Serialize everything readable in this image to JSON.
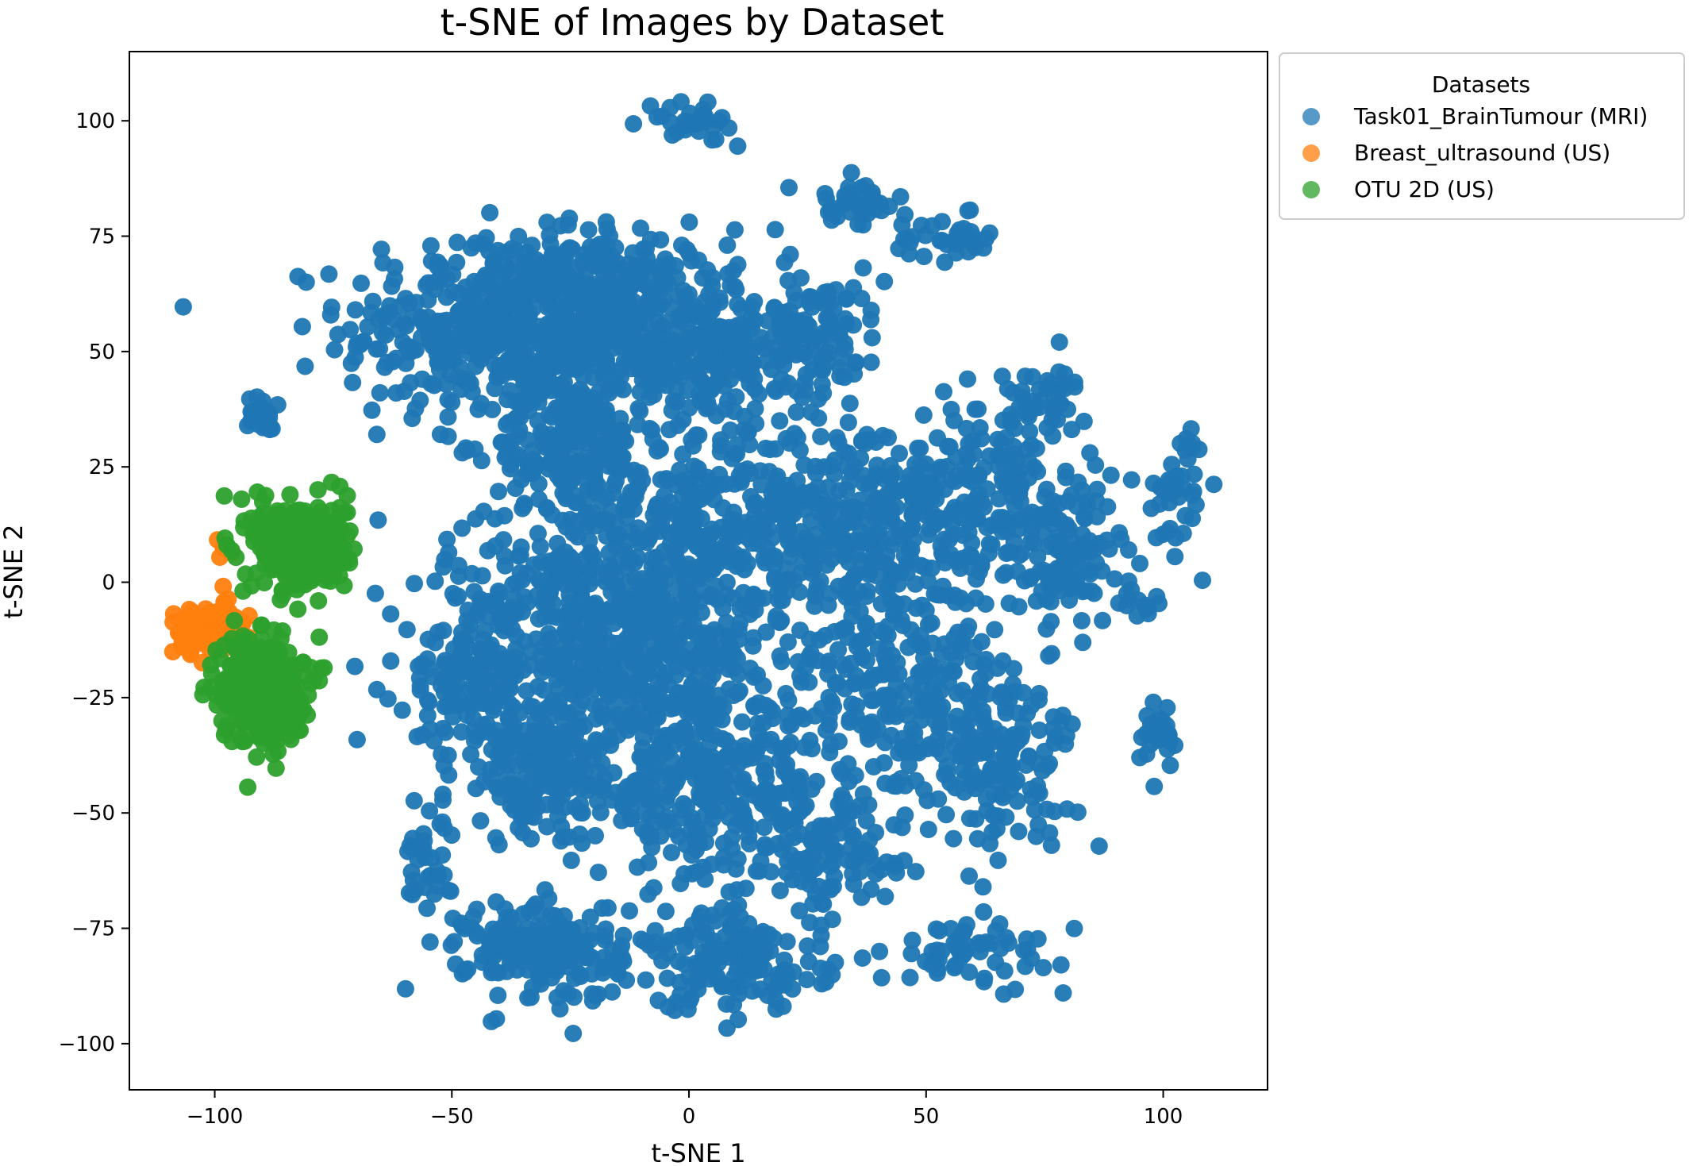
{
  "chart_data": {
    "type": "scatter",
    "title": "t-SNE of Images by Dataset",
    "xlabel": "t-SNE 1",
    "ylabel": "t-SNE 2",
    "xlim": [
      -118,
      122
    ],
    "ylim": [
      -110,
      115
    ],
    "xticks": [
      -100,
      -50,
      0,
      50,
      100
    ],
    "xtick_labels": [
      "−100",
      "−50",
      "0",
      "50",
      "100"
    ],
    "yticks": [
      -100,
      -75,
      -50,
      -25,
      0,
      25,
      50,
      75,
      100
    ],
    "ytick_labels": [
      "−100",
      "−75",
      "−50",
      "−25",
      "0",
      "25",
      "50",
      "75",
      "100"
    ],
    "grid": false,
    "legend": {
      "title": "Datasets",
      "placement": "outside-top-right"
    },
    "series": [
      {
        "name": "Task01_BrainTumour (MRI)",
        "color": "#1f77b4",
        "clusters": [
          {
            "cx": -40,
            "cy": 55,
            "rx": 30,
            "ry": 18,
            "n": 420
          },
          {
            "cx": -20,
            "cy": 60,
            "rx": 25,
            "ry": 15,
            "n": 300
          },
          {
            "cx": 0,
            "cy": 50,
            "rx": 20,
            "ry": 14,
            "n": 200
          },
          {
            "cx": -25,
            "cy": 30,
            "rx": 15,
            "ry": 12,
            "n": 200
          },
          {
            "cx": 25,
            "cy": 55,
            "rx": 15,
            "ry": 12,
            "n": 120
          },
          {
            "cx": 10,
            "cy": 15,
            "rx": 30,
            "ry": 22,
            "n": 350
          },
          {
            "cx": -20,
            "cy": 0,
            "rx": 28,
            "ry": 18,
            "n": 300
          },
          {
            "cx": 40,
            "cy": 10,
            "rx": 25,
            "ry": 22,
            "n": 260
          },
          {
            "cx": 65,
            "cy": 20,
            "rx": 18,
            "ry": 20,
            "n": 160
          },
          {
            "cx": 80,
            "cy": 5,
            "rx": 12,
            "ry": 15,
            "n": 90
          },
          {
            "cx": -45,
            "cy": -20,
            "rx": 15,
            "ry": 15,
            "n": 160
          },
          {
            "cx": -30,
            "cy": -40,
            "rx": 18,
            "ry": 15,
            "n": 200
          },
          {
            "cx": 5,
            "cy": -45,
            "rx": 22,
            "ry": 18,
            "n": 320
          },
          {
            "cx": 45,
            "cy": -25,
            "rx": 25,
            "ry": 20,
            "n": 260
          },
          {
            "cx": 65,
            "cy": -40,
            "rx": 15,
            "ry": 15,
            "n": 120
          },
          {
            "cx": -30,
            "cy": -80,
            "rx": 15,
            "ry": 10,
            "n": 200
          },
          {
            "cx": 10,
            "cy": -82,
            "rx": 18,
            "ry": 10,
            "n": 160
          },
          {
            "cx": 30,
            "cy": -60,
            "rx": 12,
            "ry": 10,
            "n": 90
          },
          {
            "cx": -10,
            "cy": -20,
            "rx": 22,
            "ry": 15,
            "n": 260
          },
          {
            "cx": 75,
            "cy": 40,
            "rx": 8,
            "ry": 6,
            "n": 40
          },
          {
            "cx": 0,
            "cy": 100,
            "rx": 8,
            "ry": 4,
            "n": 30
          },
          {
            "cx": 35,
            "cy": 82,
            "rx": 10,
            "ry": 4,
            "n": 40
          },
          {
            "cx": 55,
            "cy": 75,
            "rx": 10,
            "ry": 4,
            "n": 35
          },
          {
            "cx": 103,
            "cy": 20,
            "rx": 6,
            "ry": 12,
            "n": 40
          },
          {
            "cx": 100,
            "cy": -32,
            "rx": 4,
            "ry": 8,
            "n": 25
          },
          {
            "cx": 60,
            "cy": -80,
            "rx": 18,
            "ry": 6,
            "n": 60
          },
          {
            "cx": -55,
            "cy": -60,
            "rx": 5,
            "ry": 12,
            "n": 40
          },
          {
            "cx": -90,
            "cy": 36,
            "rx": 5,
            "ry": 4,
            "n": 20
          },
          {
            "cx": 95,
            "cy": -5,
            "rx": 3,
            "ry": 3,
            "n": 12
          }
        ]
      },
      {
        "name": "Breast_ultrasound (US)",
        "color": "#ff7f0e",
        "clusters": [
          {
            "cx": -101,
            "cy": -10,
            "rx": 7,
            "ry": 5,
            "n": 120
          },
          {
            "cx": -97,
            "cy": 8,
            "rx": 2,
            "ry": 2,
            "n": 8
          }
        ]
      },
      {
        "name": "OTU 2D (US)",
        "color": "#2ca02c",
        "clusters": [
          {
            "cx": -82,
            "cy": 8,
            "rx": 9,
            "ry": 9,
            "n": 320
          },
          {
            "cx": -90,
            "cy": -23,
            "rx": 8,
            "ry": 11,
            "n": 300
          }
        ]
      }
    ]
  }
}
